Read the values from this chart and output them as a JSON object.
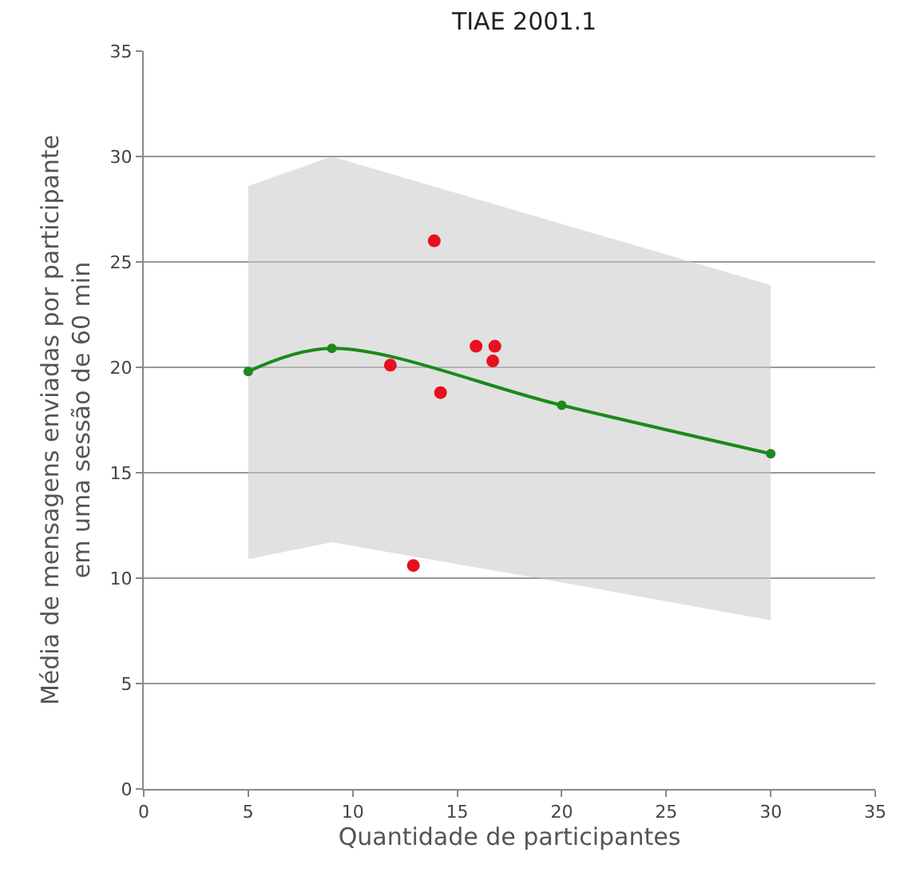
{
  "chart_data": {
    "type": "scatter",
    "title": "TIAE 2001.1",
    "xlabel": "Quantidade de participantes",
    "ylabel": "Média de mensagens enviadas por participante\nem uma sessão de 60 min",
    "xlim": [
      0,
      35
    ],
    "xticks": [
      0,
      5,
      10,
      15,
      20,
      25,
      30,
      35
    ],
    "ylim": [
      0,
      35
    ],
    "yticks": [
      0,
      5,
      10,
      15,
      20,
      25,
      30,
      35
    ],
    "grid": "y",
    "marker": "circle",
    "series": [
      {
        "type": "line",
        "color": "#1a8a1a",
        "x": [
          5,
          9,
          20,
          30
        ],
        "values": [
          19.8,
          20.9,
          18.2,
          15.9
        ],
        "lower": [
          10.9,
          11.7,
          9.8,
          8.0
        ],
        "upper": [
          28.6,
          30.0,
          26.8,
          23.9
        ]
      },
      {
        "color": "#e8101e",
        "x": [
          13.9,
          11.8,
          14.2,
          15.9,
          16.8,
          16.7,
          12.9
        ],
        "values": [
          26.0,
          20.1,
          18.8,
          21.0,
          21.0,
          20.3,
          10.6
        ]
      }
    ]
  }
}
